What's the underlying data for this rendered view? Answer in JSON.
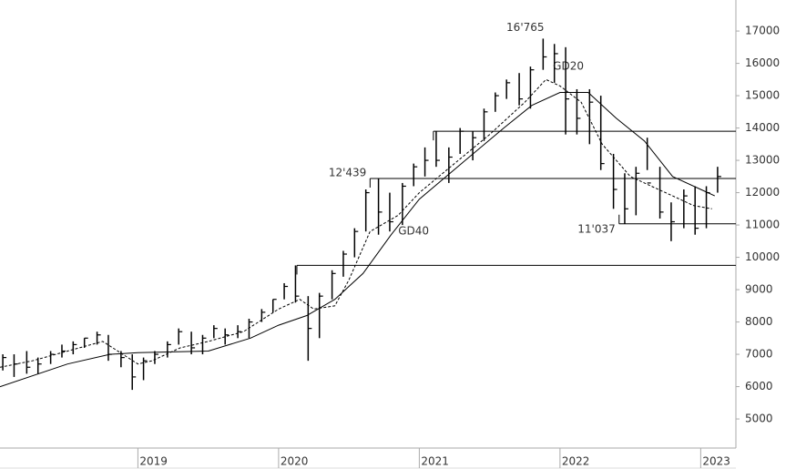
{
  "chart_data": {
    "type": "hlc",
    "x": [
      2018.04,
      2018.12,
      2018.21,
      2018.29,
      2018.38,
      2018.46,
      2018.54,
      2018.62,
      2018.71,
      2018.79,
      2018.88,
      2018.96,
      2019.04,
      2019.12,
      2019.21,
      2019.29,
      2019.38,
      2019.46,
      2019.54,
      2019.62,
      2019.71,
      2019.79,
      2019.88,
      2019.96,
      2020.04,
      2020.12,
      2020.21,
      2020.29,
      2020.38,
      2020.46,
      2020.54,
      2020.62,
      2020.71,
      2020.79,
      2020.88,
      2020.96,
      2021.04,
      2021.12,
      2021.21,
      2021.29,
      2021.38,
      2021.46,
      2021.54,
      2021.62,
      2021.71,
      2021.79,
      2021.88,
      2021.96,
      2022.04,
      2022.12,
      2022.21,
      2022.29,
      2022.38,
      2022.46,
      2022.54,
      2022.62,
      2022.71,
      2022.79,
      2022.88,
      2022.96,
      2023.04,
      2023.12
    ],
    "high": [
      7000,
      7000,
      7100,
      6900,
      7100,
      7300,
      7400,
      7500,
      7700,
      7600,
      7100,
      7000,
      6900,
      7100,
      7400,
      7800,
      7700,
      7600,
      7900,
      7800,
      7900,
      8100,
      8400,
      8700,
      9200,
      9750,
      8800,
      8900,
      9600,
      10200,
      10900,
      12100,
      12439,
      12000,
      12300,
      12900,
      13400,
      13900,
      13400,
      14000,
      13900,
      14600,
      15100,
      15500,
      15700,
      15900,
      16765,
      16600,
      16500,
      15200,
      15200,
      15000,
      13200,
      12600,
      12800,
      13700,
      12800,
      11700,
      12100,
      12200,
      12200,
      12800
    ],
    "low": [
      6500,
      6300,
      6400,
      6400,
      6700,
      6900,
      7000,
      7200,
      7300,
      6800,
      6600,
      5900,
      6200,
      6700,
      6900,
      7300,
      7000,
      7000,
      7500,
      7300,
      7500,
      7500,
      8000,
      8300,
      8700,
      8600,
      6800,
      7500,
      8700,
      9400,
      10000,
      10800,
      10700,
      10800,
      11000,
      12200,
      12500,
      12800,
      12300,
      13200,
      13000,
      13600,
      14500,
      14900,
      14700,
      14600,
      15800,
      15400,
      13800,
      13800,
      13500,
      12700,
      11500,
      11037,
      11300,
      12700,
      11200,
      10500,
      10900,
      10700,
      10900,
      12000
    ],
    "close": [
      6900,
      6700,
      6600,
      6700,
      7000,
      7100,
      7300,
      7500,
      7600,
      7000,
      6900,
      6300,
      6800,
      7000,
      7300,
      7700,
      7200,
      7500,
      7800,
      7600,
      7700,
      8000,
      8300,
      8700,
      9100,
      8800,
      7800,
      8800,
      9500,
      10100,
      10800,
      12000,
      11400,
      11100,
      12200,
      12800,
      13000,
      13000,
      13100,
      13900,
      13700,
      14500,
      15000,
      15400,
      14900,
      15800,
      16200,
      16300,
      14900,
      14300,
      14800,
      12900,
      12100,
      11500,
      12600,
      12300,
      11400,
      11100,
      11900,
      10900,
      12000,
      12500
    ],
    "series": [
      {
        "name": "GD20",
        "dash": true,
        "color": "#000000",
        "x": [
          2018.02,
          2018.25,
          2018.5,
          2018.75,
          2019.0,
          2019.1,
          2019.3,
          2019.5,
          2019.75,
          2020.0,
          2020.15,
          2020.25,
          2020.4,
          2020.5,
          2020.65,
          2020.85,
          2021.0,
          2021.25,
          2021.5,
          2021.75,
          2021.9,
          2022.0,
          2022.15,
          2022.3,
          2022.5,
          2022.65,
          2022.8,
          2022.95,
          2023.08
        ],
        "values": [
          6600,
          6800,
          7100,
          7400,
          6700,
          6800,
          7200,
          7400,
          7700,
          8400,
          8700,
          8400,
          8500,
          9300,
          10800,
          11300,
          12000,
          12900,
          13800,
          14800,
          15500,
          15300,
          14800,
          13500,
          12500,
          12200,
          11900,
          11600,
          11500
        ]
      },
      {
        "name": "GD40",
        "dash": false,
        "color": "#000000",
        "x": [
          2018.02,
          2018.5,
          2018.8,
          2019.0,
          2019.5,
          2019.8,
          2020.0,
          2020.2,
          2020.4,
          2020.6,
          2020.8,
          2021.0,
          2021.3,
          2021.6,
          2021.8,
          2022.0,
          2022.2,
          2022.4,
          2022.6,
          2022.8,
          2023.0,
          2023.1
        ],
        "values": [
          6000,
          6700,
          7000,
          7050,
          7100,
          7500,
          7900,
          8200,
          8700,
          9500,
          10700,
          11800,
          12900,
          14000,
          14700,
          15100,
          15100,
          14300,
          13600,
          12500,
          12100,
          11900
        ]
      }
    ],
    "levels": [
      {
        "value": 13900,
        "from": 2021.1
      },
      {
        "value": 12439,
        "from": 2020.65,
        "label": "12'439"
      },
      {
        "value": 11037,
        "from": 2022.42,
        "label": "11'037"
      },
      {
        "value": 9750,
        "from": 2020.13
      }
    ],
    "peak": {
      "value": 16765,
      "x": 2021.87,
      "label": "16'765"
    },
    "xlim": [
      2018.02,
      2023.25
    ],
    "ylim": [
      4100,
      17960
    ],
    "xticks": [
      2019,
      2020,
      2021,
      2022,
      2023
    ],
    "yticks": [
      5000,
      6000,
      7000,
      8000,
      9000,
      10000,
      11000,
      12000,
      13000,
      14000,
      15000,
      16000,
      17000
    ],
    "color": "#000000"
  }
}
